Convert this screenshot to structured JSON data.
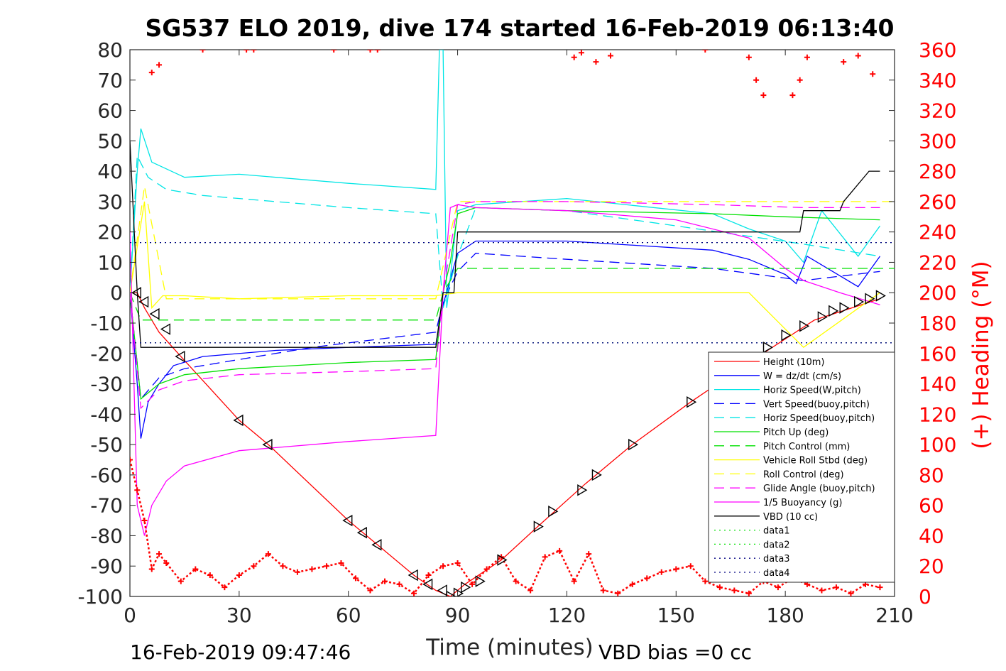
{
  "chart_data": {
    "type": "line",
    "title": "SG537 ELO 2019, dive 174 started 16-Feb-2019 06:13:40",
    "xlabel": "Time (minutes)",
    "ylabel_right": "(+) Heading (°M)",
    "footer_left": "16-Feb-2019 09:47:46",
    "footer_right": "VBD bias =0 cc",
    "xlim": [
      0,
      210
    ],
    "ylim": [
      -100,
      80
    ],
    "y2lim": [
      0,
      360
    ],
    "x_ticks": [
      "0",
      "30",
      "60",
      "90",
      "120",
      "150",
      "180",
      "210"
    ],
    "y_ticks": [
      "80",
      "70",
      "60",
      "50",
      "40",
      "30",
      "20",
      "10",
      "0",
      "-10",
      "-20",
      "-30",
      "-40",
      "-50",
      "-60",
      "-70",
      "-80",
      "-90",
      "-100"
    ],
    "y2_ticks": [
      "360",
      "340",
      "320",
      "300",
      "280",
      "260",
      "240",
      "220",
      "200",
      "180",
      "160",
      "140",
      "120",
      "100",
      "80",
      "60",
      "40",
      "20",
      "0"
    ],
    "legend_position": "bottom-right",
    "grid": false,
    "series": [
      {
        "name": "Height (10m)",
        "color": "#ff0000",
        "style": "solid",
        "x": [
          0,
          2,
          4,
          8,
          14,
          30,
          38,
          60,
          66,
          78,
          84,
          88,
          92,
          102,
          112,
          125,
          138,
          154,
          170,
          188,
          206
        ],
        "y": [
          0,
          0,
          -5,
          -13,
          -21,
          -42,
          -50,
          -75,
          -81,
          -93,
          -98,
          -100,
          -96,
          -88,
          -77,
          -63,
          -50,
          -36,
          -23,
          -9,
          -2
        ]
      },
      {
        "name": "W = dz/dt (cm/s)",
        "color": "#0000ff",
        "style": "solid",
        "x": [
          0,
          2,
          3,
          5,
          8,
          12,
          20,
          40,
          60,
          84,
          86,
          90,
          95,
          120,
          160,
          170,
          180,
          183,
          186,
          200,
          206
        ],
        "y": [
          0,
          -30,
          -48,
          -36,
          -30,
          -24,
          -21,
          -19,
          -18,
          -17,
          -4,
          13,
          17,
          17,
          14,
          11,
          6,
          3,
          12,
          2,
          12
        ]
      },
      {
        "name": "Horiz Speed(W,pitch)",
        "color": "#00e5e5",
        "style": "solid",
        "x": [
          0,
          2,
          3,
          6,
          15,
          30,
          60,
          84,
          85,
          86,
          87,
          88,
          90,
          95,
          120,
          160,
          170,
          180,
          185,
          190,
          200,
          206
        ],
        "y": [
          0,
          40,
          54,
          43,
          38,
          39,
          36,
          34,
          80,
          80,
          -5,
          5,
          27,
          29,
          31,
          26,
          21,
          17,
          10,
          27,
          12,
          22
        ]
      },
      {
        "name": "Vert Speed(buoy,pitch)",
        "color": "#0000ff",
        "style": "dashed",
        "x": [
          0,
          3,
          8,
          15,
          30,
          50,
          84,
          86,
          90,
          95,
          120,
          160,
          185,
          206
        ],
        "y": [
          0,
          -35,
          -28,
          -25,
          -22,
          -18,
          -13,
          -3,
          7,
          13,
          11,
          8,
          4,
          7
        ]
      },
      {
        "name": "Horiz Speed(buoy,pitch)",
        "color": "#00e5e5",
        "style": "dashed",
        "x": [
          0,
          2,
          5,
          10,
          20,
          40,
          60,
          84,
          86,
          90,
          95,
          120,
          150,
          185,
          206
        ],
        "y": [
          0,
          45,
          38,
          34,
          32,
          30,
          28,
          26,
          -5,
          12,
          28,
          27,
          22,
          16,
          12
        ]
      },
      {
        "name": "Pitch Up (deg)",
        "color": "#00e000",
        "style": "solid",
        "x": [
          0,
          3,
          8,
          15,
          30,
          60,
          84,
          86,
          88,
          90,
          95,
          120,
          160,
          180,
          206
        ],
        "y": [
          0,
          -35,
          -30,
          -27,
          -25,
          -23,
          -22,
          0,
          10,
          26,
          28,
          27,
          26,
          25,
          24
        ]
      },
      {
        "name": "Pitch Control (mm)",
        "color": "#00e000",
        "style": "dashed",
        "x": [
          0,
          3,
          10,
          84,
          86,
          90,
          210
        ],
        "y": [
          0,
          -9,
          -9,
          -9,
          0,
          8,
          8
        ]
      },
      {
        "name": "Vehicle Roll Stbd (deg)",
        "color": "#ffff00",
        "style": "solid",
        "x": [
          0,
          4,
          6,
          9,
          15,
          30,
          60,
          84,
          90,
          120,
          160,
          170,
          185,
          206
        ],
        "y": [
          0,
          30,
          -5,
          -1,
          -1,
          -2,
          -1,
          -1,
          0,
          0,
          0,
          0,
          -18,
          0
        ]
      },
      {
        "name": "Roll Control (deg)",
        "color": "#ffff00",
        "style": "dashed",
        "x": [
          0,
          4,
          10,
          84,
          90,
          210
        ],
        "y": [
          0,
          35,
          -2,
          -2,
          30,
          30
        ]
      },
      {
        "name": "Glide Angle (buoy,pitch)",
        "color": "#ff00ff",
        "style": "dashed",
        "x": [
          0,
          3,
          8,
          15,
          30,
          60,
          84,
          86,
          90,
          95,
          120,
          160,
          185,
          206
        ],
        "y": [
          0,
          -38,
          -32,
          -29,
          -27,
          -26,
          -25,
          0,
          29,
          30,
          30,
          29,
          28,
          28
        ]
      },
      {
        "name": "1/5 Buoyancy (g)",
        "color": "#ff00ff",
        "style": "solid",
        "x": [
          0,
          2,
          4,
          6,
          10,
          15,
          30,
          60,
          84,
          86,
          88,
          90,
          95,
          120,
          150,
          170,
          180,
          185,
          195,
          206
        ],
        "y": [
          20,
          -70,
          -80,
          -70,
          -62,
          -57,
          -52,
          -49,
          -47,
          0,
          28,
          29,
          28,
          27,
          24,
          18,
          8,
          4,
          0,
          -4
        ]
      },
      {
        "name": "VBD (10 cc)",
        "color": "#000000",
        "style": "solid",
        "x": [
          0,
          1,
          2,
          3,
          84,
          86,
          89,
          90,
          184,
          185,
          195,
          196,
          203,
          206
        ],
        "y": [
          50,
          25,
          0,
          -18,
          -18,
          0,
          0,
          20,
          20,
          27,
          27,
          30,
          40,
          40
        ]
      },
      {
        "name": "data1",
        "color": "#00e000",
        "style": "dotted",
        "x": [
          0,
          210
        ],
        "y": [
          16.5,
          16.5
        ]
      },
      {
        "name": "data2",
        "color": "#00e000",
        "style": "dotted",
        "x": [
          0,
          210
        ],
        "y": [
          -16.5,
          -16.5
        ]
      },
      {
        "name": "data3",
        "color": "#000080",
        "style": "dotted",
        "x": [
          0,
          210
        ],
        "y": [
          16.5,
          16.5
        ]
      },
      {
        "name": "data4",
        "color": "#000080",
        "style": "dotted",
        "x": [
          0,
          210
        ],
        "y": [
          -16.5,
          -16.5
        ]
      }
    ],
    "heading_series": {
      "axis": "right",
      "color": "#ff0000",
      "marker": "plus",
      "x": [
        0,
        2,
        4,
        6,
        8,
        10,
        14,
        18,
        22,
        26,
        30,
        34,
        38,
        42,
        46,
        50,
        54,
        58,
        62,
        66,
        70,
        74,
        78,
        82,
        86,
        90,
        94,
        98,
        102,
        106,
        110,
        114,
        118,
        122,
        126,
        130,
        134,
        138,
        142,
        146,
        150,
        154,
        158,
        162,
        166,
        170,
        174,
        178,
        182,
        186,
        190,
        194,
        198,
        202,
        206
      ],
      "y": [
        90,
        70,
        50,
        18,
        28,
        22,
        10,
        18,
        14,
        6,
        14,
        20,
        28,
        20,
        16,
        18,
        20,
        22,
        12,
        4,
        10,
        8,
        2,
        14,
        20,
        22,
        8,
        18,
        26,
        10,
        4,
        26,
        30,
        10,
        28,
        4,
        2,
        8,
        12,
        16,
        18,
        20,
        10,
        6,
        4,
        2,
        10,
        6,
        12,
        8,
        4,
        6,
        2,
        8,
        6
      ]
    },
    "heading_top_series": {
      "axis": "right",
      "color": "#ff0000",
      "marker": "plus",
      "x": [
        6,
        8,
        20,
        32,
        34,
        56,
        66,
        68,
        122,
        124,
        128,
        132,
        158,
        170,
        172,
        174,
        182,
        184,
        186,
        196,
        200,
        204
      ],
      "y": [
        345,
        350,
        360,
        360,
        360,
        360,
        360,
        360,
        355,
        358,
        352,
        356,
        360,
        355,
        340,
        330,
        330,
        340,
        355,
        352,
        356,
        344
      ]
    },
    "markers": {
      "climb_triangles_x": [
        2,
        4,
        7,
        10,
        14,
        30,
        38,
        60,
        64,
        68,
        78,
        82,
        86,
        88,
        90,
        92,
        96,
        102,
        112,
        116,
        124,
        128,
        138,
        154,
        175,
        180,
        185,
        190,
        193,
        196,
        200,
        203,
        206
      ],
      "climb_triangles_y": [
        0,
        -3,
        -7,
        -12,
        -21,
        -42,
        -50,
        -75,
        -79,
        -83,
        -93,
        -96,
        -98,
        -100,
        -99,
        -97,
        -95,
        -88,
        -77,
        -72,
        -65,
        -60,
        -50,
        -36,
        -18,
        -14,
        -11,
        -8,
        -6,
        -5,
        -3,
        -2,
        -1
      ]
    }
  }
}
